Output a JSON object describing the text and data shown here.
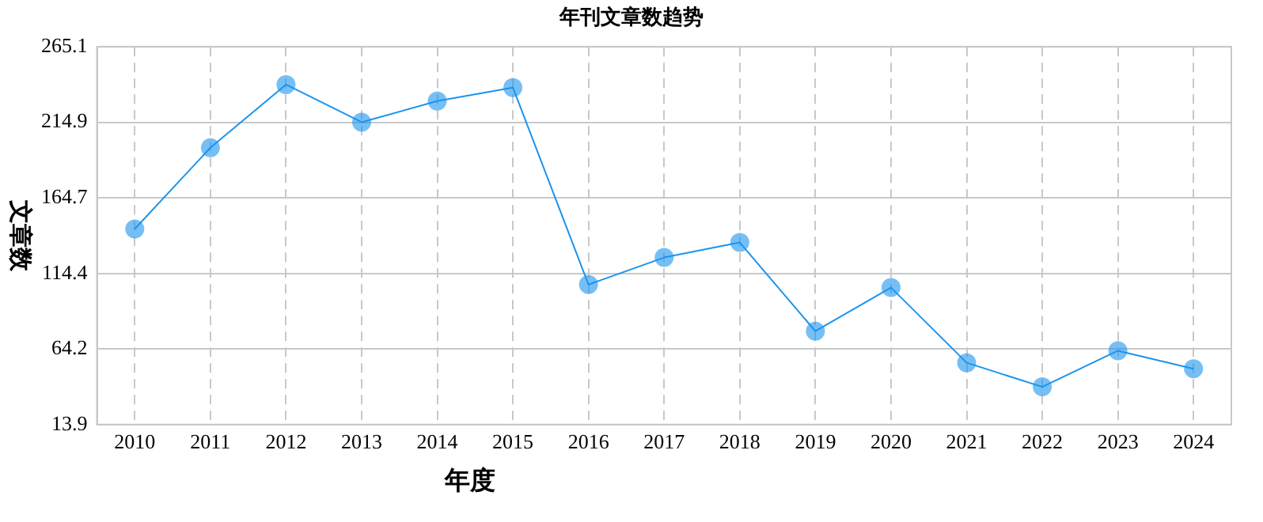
{
  "chart_data": {
    "type": "line",
    "title": "年刊文章数趋势",
    "xlabel": "年度",
    "ylabel": "文章数",
    "categories": [
      "2010",
      "2011",
      "2012",
      "2013",
      "2014",
      "2015",
      "2016",
      "2017",
      "2018",
      "2019",
      "2020",
      "2021",
      "2022",
      "2023",
      "2024"
    ],
    "series": [
      {
        "color": "#1a94ee",
        "values": [
          144,
          198,
          240,
          215,
          229,
          238,
          107,
          125,
          135,
          76,
          105,
          55,
          39,
          63,
          51
        ]
      }
    ],
    "ylim": [
      13.9,
      265.1
    ],
    "yticks": [
      13.9,
      64.2,
      114.4,
      164.7,
      214.9,
      265.1
    ],
    "grid": true,
    "legend": false,
    "marker": "circle",
    "line_style": "solid"
  }
}
